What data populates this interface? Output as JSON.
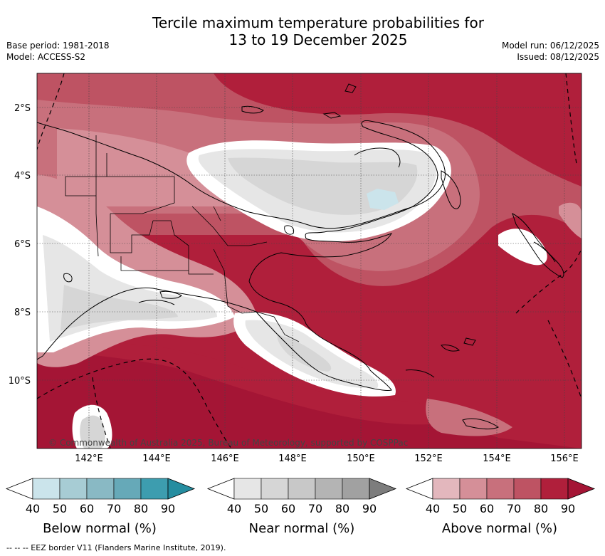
{
  "title": {
    "line1": "Tercile maximum temperature probabilities for",
    "line2": "13 to 19 December 2025"
  },
  "meta_left": {
    "base_period": "Base period: 1981-2018",
    "model": "Model: ACCESS-S2"
  },
  "meta_right": {
    "model_run": "Model run: 06/12/2025",
    "issued": "Issued: 08/12/2025"
  },
  "lat_labels": [
    "2°S",
    "4°S",
    "6°S",
    "8°S",
    "10°S"
  ],
  "lon_labels": [
    "142°E",
    "144°E",
    "146°E",
    "148°E",
    "150°E",
    "152°E",
    "154°E",
    "156°E"
  ],
  "copyright": "© Commonwealth of Australia 2025, Bureau of Meteorology, supported by COSPPac",
  "colorbars": [
    {
      "title": "Below normal (%)",
      "ticks": [
        "40",
        "50",
        "60",
        "70",
        "80",
        "90"
      ],
      "colors": [
        "#ffffff",
        "#cbe4eb",
        "#a7ccd4",
        "#89b9c4",
        "#66a9b8",
        "#3d9daf",
        "#258da0"
      ]
    },
    {
      "title": "Near normal (%)",
      "ticks": [
        "40",
        "50",
        "60",
        "70",
        "80",
        "90"
      ],
      "colors": [
        "#ffffff",
        "#e6e6e6",
        "#d6d6d6",
        "#c8c8c8",
        "#b4b4b4",
        "#a1a1a1",
        "#7d7d7d"
      ]
    },
    {
      "title": "Above normal (%)",
      "ticks": [
        "40",
        "50",
        "60",
        "70",
        "80",
        "90"
      ],
      "colors": [
        "#ffffff",
        "#e3b7bd",
        "#d58f98",
        "#c8707c",
        "#be5363",
        "#b01f3b",
        "#a41535"
      ]
    }
  ],
  "footer": "--  --  -- EEZ border V11 (Flanders Marine Institute, 2019)."
}
